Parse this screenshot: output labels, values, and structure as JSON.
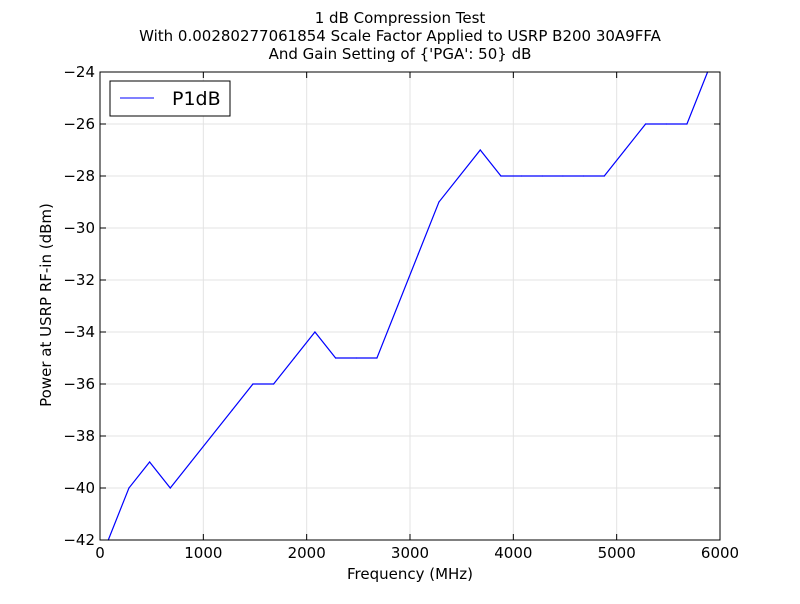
{
  "chart_data": {
    "type": "line",
    "title_lines": [
      "1 dB Compression Test",
      "With 0.00280277061854 Scale Factor Applied to USRP B200 30A9FFA",
      "And Gain Setting of {'PGA': 50} dB"
    ],
    "xlabel": "Frequency (MHz)",
    "ylabel": "Power at USRP RF-in (dBm)",
    "xlim": [
      0,
      6000
    ],
    "ylim": [
      -42,
      -24
    ],
    "xticks": [
      0,
      1000,
      2000,
      3000,
      4000,
      5000,
      6000
    ],
    "xtick_labels": [
      "0",
      "1000",
      "2000",
      "3000",
      "4000",
      "5000",
      "6000"
    ],
    "yticks": [
      -42,
      -40,
      -38,
      -36,
      -34,
      -32,
      -30,
      -28,
      -26,
      -24
    ],
    "ytick_labels": [
      "−42",
      "−40",
      "−38",
      "−36",
      "−34",
      "−32",
      "−30",
      "−28",
      "−26",
      "−24"
    ],
    "grid": true,
    "legend_position": "top-left",
    "series": [
      {
        "name": "P1dB",
        "color": "#0000ff",
        "x": [
          80,
          280,
          480,
          680,
          880,
          1080,
          1280,
          1480,
          1680,
          1880,
          2080,
          2280,
          2480,
          2680,
          2880,
          3080,
          3280,
          3480,
          3680,
          3880,
          4080,
          4280,
          4480,
          4680,
          4880,
          5080,
          5280,
          5480,
          5680,
          5880
        ],
        "y": [
          -42,
          -40,
          -39,
          -40,
          -39,
          -38,
          -37,
          -36,
          -36,
          -35,
          -34,
          -35,
          -35,
          -35,
          -33,
          -31,
          -29,
          -28,
          -27,
          -28,
          -28,
          -28,
          -28,
          -28,
          -28,
          -27,
          -26,
          -26,
          -26,
          -24
        ]
      }
    ]
  }
}
